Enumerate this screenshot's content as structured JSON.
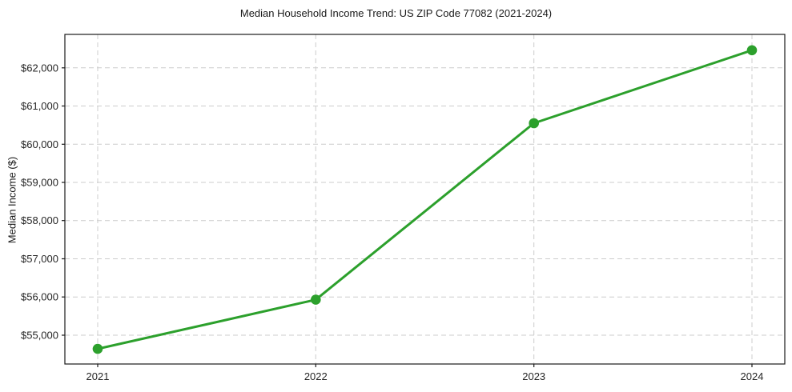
{
  "chart_data": {
    "type": "line",
    "title": "Median Household Income Trend: US ZIP Code 77082 (2021-2024)",
    "xlabel": "",
    "ylabel": "Median Income ($)",
    "categories": [
      "2021",
      "2022",
      "2023",
      "2024"
    ],
    "values": [
      54640,
      55930,
      60550,
      62460
    ],
    "ylim": [
      54245,
      62875
    ],
    "yticks": [
      55000,
      56000,
      57000,
      58000,
      59000,
      60000,
      61000,
      62000
    ],
    "ytick_labels": [
      "$55,000",
      "$56,000",
      "$57,000",
      "$58,000",
      "$59,000",
      "$60,000",
      "$61,000",
      "$62,000"
    ],
    "grid": true,
    "grid_style": "dashed",
    "legend": false,
    "line_color": "#2ca02c",
    "grid_color": "#cccccc",
    "spine_color": "#1a1a1a",
    "marker": "circle"
  }
}
